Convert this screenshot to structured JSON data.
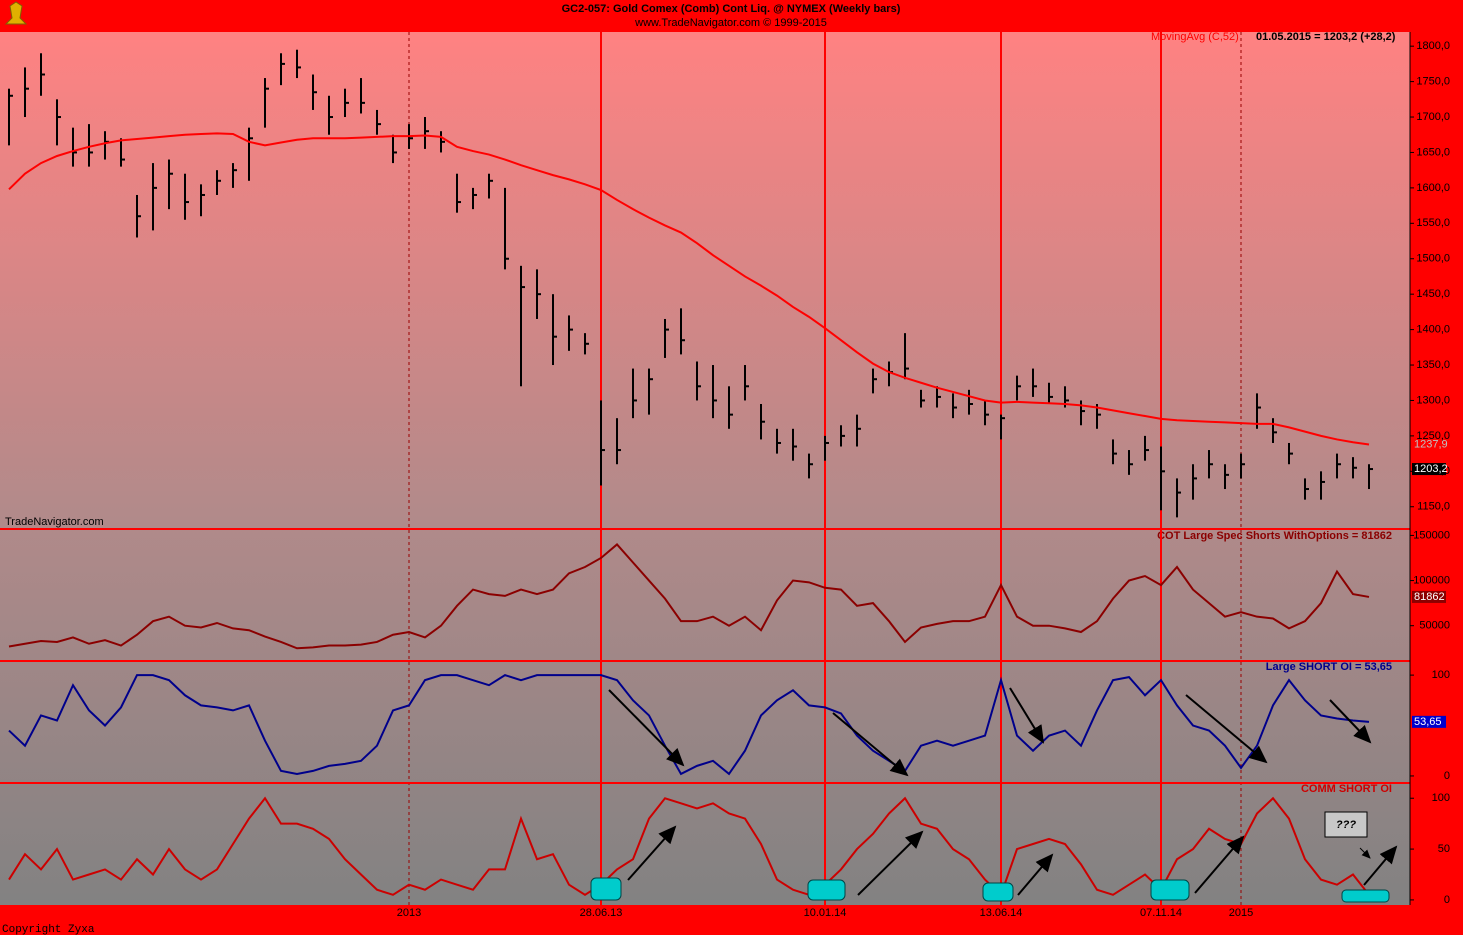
{
  "chart_data": [
    {
      "type": "ohlc",
      "title": "GC2-057:  Gold Comex (Comb) Cont Liq. @ NYMEX  (Weekly bars)",
      "subtitle": "www.TradeNavigator.com © 1999-2015",
      "watermark": "TradeNavigator.com",
      "legend_text": "01.05.2015 = 1203,2 (+28,2)",
      "color": "#000000",
      "high": [
        1740,
        1770,
        1790,
        1725,
        1685,
        1690,
        1680,
        1670,
        1590,
        1635,
        1640,
        1620,
        1605,
        1625,
        1635,
        1685,
        1755,
        1790,
        1795,
        1760,
        1730,
        1740,
        1755,
        1710,
        1675,
        1690,
        1700,
        1680,
        1620,
        1600,
        1620,
        1600,
        1490,
        1485,
        1450,
        1420,
        1395,
        1300,
        1275,
        1345,
        1345,
        1415,
        1430,
        1355,
        1350,
        1320,
        1350,
        1295,
        1260,
        1260,
        1225,
        1250,
        1265,
        1280,
        1345,
        1355,
        1395,
        1315,
        1320,
        1310,
        1315,
        1300,
        1280,
        1335,
        1345,
        1325,
        1320,
        1300,
        1295,
        1245,
        1230,
        1250,
        1235,
        1190,
        1210,
        1230,
        1210,
        1225,
        1310,
        1275,
        1240,
        1190,
        1200,
        1225,
        1220,
        1210
      ],
      "low": [
        1660,
        1700,
        1730,
        1660,
        1630,
        1630,
        1640,
        1630,
        1530,
        1540,
        1570,
        1555,
        1560,
        1590,
        1600,
        1610,
        1685,
        1745,
        1755,
        1710,
        1675,
        1700,
        1705,
        1675,
        1635,
        1655,
        1655,
        1650,
        1565,
        1570,
        1585,
        1485,
        1320,
        1415,
        1350,
        1370,
        1365,
        1180,
        1210,
        1275,
        1280,
        1360,
        1365,
        1300,
        1275,
        1260,
        1300,
        1245,
        1225,
        1215,
        1190,
        1215,
        1235,
        1235,
        1310,
        1320,
        1330,
        1290,
        1290,
        1275,
        1280,
        1265,
        1245,
        1300,
        1305,
        1295,
        1290,
        1265,
        1260,
        1210,
        1195,
        1215,
        1145,
        1135,
        1160,
        1190,
        1175,
        1190,
        1260,
        1240,
        1210,
        1160,
        1160,
        1190,
        1190,
        1175
      ],
      "close": [
        1730,
        1740,
        1760,
        1700,
        1650,
        1650,
        1665,
        1640,
        1560,
        1600,
        1620,
        1580,
        1590,
        1610,
        1625,
        1670,
        1740,
        1775,
        1770,
        1735,
        1700,
        1720,
        1720,
        1690,
        1650,
        1670,
        1680,
        1665,
        1580,
        1590,
        1610,
        1500,
        1460,
        1450,
        1390,
        1400,
        1380,
        1230,
        1230,
        1300,
        1330,
        1400,
        1385,
        1320,
        1300,
        1280,
        1320,
        1270,
        1240,
        1235,
        1210,
        1240,
        1250,
        1260,
        1330,
        1340,
        1345,
        1300,
        1305,
        1290,
        1295,
        1280,
        1275,
        1320,
        1320,
        1305,
        1300,
        1285,
        1280,
        1225,
        1210,
        1230,
        1200,
        1170,
        1190,
        1210,
        1195,
        1210,
        1290,
        1255,
        1225,
        1175,
        1185,
        1210,
        1205,
        1203.2
      ],
      "close_label": "1203,2",
      "overlay": {
        "name": "MovingAvg (C,52)",
        "color": "#ff0000",
        "last_label": "1237,9",
        "values": [
          1598,
          1620,
          1635,
          1645,
          1652,
          1658,
          1663,
          1667,
          1669,
          1671,
          1673,
          1675,
          1676,
          1677,
          1676,
          1665,
          1660,
          1664,
          1668,
          1670,
          1670,
          1670,
          1671,
          1672,
          1673,
          1673,
          1674,
          1672,
          1658,
          1652,
          1647,
          1640,
          1632,
          1625,
          1618,
          1612,
          1605,
          1597,
          1583,
          1570,
          1558,
          1547,
          1537,
          1522,
          1505,
          1490,
          1475,
          1462,
          1448,
          1432,
          1418,
          1402,
          1385,
          1368,
          1352,
          1340,
          1332,
          1325,
          1318,
          1312,
          1306,
          1300,
          1297,
          1298,
          1297,
          1296,
          1295,
          1293,
          1290,
          1286,
          1282,
          1278,
          1274,
          1272,
          1271,
          1270,
          1269,
          1268,
          1267,
          1267,
          1262,
          1256,
          1250,
          1245,
          1241,
          1237.9
        ]
      },
      "ylim": [
        1120,
        1820
      ],
      "yticks": [
        {
          "value": 1150,
          "label": "1150,0"
        },
        {
          "value": 1200,
          "label": "1200,0"
        },
        {
          "value": 1250,
          "label": "1250,0"
        },
        {
          "value": 1300,
          "label": "1300,0"
        },
        {
          "value": 1350,
          "label": "1350,0"
        },
        {
          "value": 1400,
          "label": "1400,0"
        },
        {
          "value": 1450,
          "label": "1450,0"
        },
        {
          "value": 1500,
          "label": "1500,0"
        },
        {
          "value": 1550,
          "label": "1550,0"
        },
        {
          "value": 1600,
          "label": "1600,0"
        },
        {
          "value": 1650,
          "label": "1650,0"
        },
        {
          "value": 1700,
          "label": "1700,0"
        },
        {
          "value": 1750,
          "label": "1750,0"
        },
        {
          "value": 1800,
          "label": "1800,0"
        }
      ]
    },
    {
      "type": "line",
      "title": "COT Large Spec Shorts WithOptions = 81862",
      "color": "#8b0000",
      "label_fill": "#8b0000",
      "values": [
        27000,
        30000,
        33000,
        32000,
        37000,
        30000,
        34000,
        28000,
        40000,
        55000,
        60000,
        50000,
        48000,
        53000,
        47000,
        45000,
        38000,
        32000,
        25000,
        26000,
        28000,
        28000,
        29000,
        32000,
        40000,
        43000,
        37000,
        50000,
        72000,
        90000,
        85000,
        83000,
        90000,
        85000,
        90000,
        108000,
        115000,
        125000,
        140000,
        120000,
        100000,
        80000,
        55000,
        55000,
        60000,
        50000,
        60000,
        45000,
        78000,
        100000,
        98000,
        92000,
        90000,
        72000,
        75000,
        55000,
        32000,
        48000,
        52000,
        55000,
        55000,
        60000,
        95000,
        60000,
        50000,
        50000,
        47000,
        43000,
        55000,
        80000,
        100000,
        105000,
        95000,
        115000,
        90000,
        75000,
        60000,
        65000,
        60000,
        58000,
        47000,
        55000,
        75000,
        110000,
        85000,
        81862
      ],
      "last_label": "81862",
      "ylim": [
        12000,
        156000
      ],
      "yticks": [
        50000,
        100000,
        150000
      ]
    },
    {
      "type": "line",
      "title": "Large SHORT OI = 53,65",
      "color": "#00008b",
      "label_fill": "#0000cc",
      "values": [
        45,
        30,
        60,
        55,
        90,
        65,
        50,
        68,
        100,
        100,
        95,
        80,
        70,
        68,
        65,
        70,
        35,
        5,
        2,
        5,
        10,
        12,
        15,
        30,
        65,
        70,
        95,
        100,
        100,
        95,
        90,
        100,
        95,
        100,
        100,
        100,
        100,
        100,
        95,
        75,
        60,
        30,
        2,
        10,
        15,
        2,
        25,
        60,
        75,
        85,
        70,
        68,
        62,
        40,
        25,
        15,
        5,
        30,
        35,
        30,
        35,
        40,
        95,
        40,
        25,
        40,
        45,
        30,
        65,
        95,
        98,
        80,
        95,
        70,
        50,
        45,
        30,
        8,
        30,
        70,
        95,
        75,
        60,
        57,
        55,
        53.65
      ],
      "last_label": "53,65",
      "ylim": [
        -6,
        113
      ],
      "yticks": [
        0,
        100
      ]
    },
    {
      "type": "line",
      "title": "COMM SHORT OI",
      "color": "#cc0000",
      "annotation": "???",
      "values": [
        20,
        45,
        30,
        50,
        20,
        25,
        30,
        20,
        40,
        25,
        50,
        30,
        20,
        30,
        55,
        80,
        100,
        75,
        75,
        70,
        60,
        40,
        25,
        10,
        5,
        15,
        10,
        20,
        15,
        10,
        30,
        30,
        80,
        40,
        45,
        15,
        5,
        15,
        30,
        40,
        80,
        100,
        95,
        90,
        95,
        85,
        80,
        55,
        20,
        10,
        5,
        15,
        30,
        50,
        65,
        85,
        100,
        75,
        70,
        50,
        40,
        20,
        5,
        50,
        55,
        60,
        55,
        35,
        10,
        5,
        15,
        25,
        10,
        40,
        50,
        70,
        60,
        55,
        85,
        100,
        80,
        40,
        20,
        15,
        25,
        5
      ],
      "ylim": [
        -5,
        114
      ],
      "yticks": [
        0,
        50,
        100
      ],
      "categories": [
        null,
        null,
        null,
        null,
        null,
        null,
        null,
        null,
        null,
        null,
        null,
        null,
        null,
        null,
        null,
        null,
        null,
        null,
        null,
        null,
        null,
        null,
        null,
        null,
        null,
        "2013",
        null,
        null,
        null,
        null,
        null,
        null,
        null,
        null,
        null,
        null,
        null,
        "28.06.13",
        null,
        null,
        null,
        null,
        null,
        null,
        null,
        null,
        null,
        null,
        null,
        null,
        null,
        "10.01.14",
        null,
        null,
        null,
        null,
        null,
        null,
        null,
        null,
        null,
        null,
        "13.06.14",
        null,
        null,
        null,
        null,
        null,
        null,
        null,
        null,
        null,
        "07.11.14",
        null,
        null,
        null,
        null,
        "2015",
        null,
        null,
        null,
        null,
        null,
        null,
        null,
        null
      ]
    }
  ],
  "copyright": "Copyright Zyxa"
}
